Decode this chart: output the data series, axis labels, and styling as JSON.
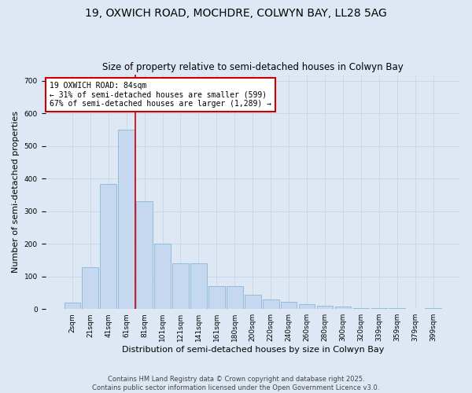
{
  "title_line1": "19, OXWICH ROAD, MOCHDRE, COLWYN BAY, LL28 5AG",
  "title_line2": "Size of property relative to semi-detached houses in Colwyn Bay",
  "xlabel": "Distribution of semi-detached houses by size in Colwyn Bay",
  "ylabel": "Number of semi-detached properties",
  "categories": [
    "2sqm",
    "21sqm",
    "41sqm",
    "61sqm",
    "81sqm",
    "101sqm",
    "121sqm",
    "141sqm",
    "161sqm",
    "180sqm",
    "200sqm",
    "220sqm",
    "240sqm",
    "260sqm",
    "280sqm",
    "300sqm",
    "320sqm",
    "339sqm",
    "359sqm",
    "379sqm",
    "399sqm"
  ],
  "values": [
    20,
    128,
    385,
    550,
    330,
    200,
    140,
    140,
    70,
    70,
    45,
    30,
    22,
    15,
    10,
    8,
    4,
    2,
    2,
    1,
    2
  ],
  "bar_color": "#c5d8f0",
  "bar_edge_color": "#7aafd4",
  "highlight_index": 3,
  "annotation_text_line1": "19 OXWICH ROAD: 84sqm",
  "annotation_text_line2": "← 31% of semi-detached houses are smaller (599)",
  "annotation_text_line3": "67% of semi-detached houses are larger (1,289) →",
  "annotation_box_color": "#ffffff",
  "annotation_border_color": "#cc0000",
  "vline_color": "#cc0000",
  "grid_color": "#c8d8e8",
  "background_color": "#dde8f4",
  "ylim": [
    0,
    720
  ],
  "yticks": [
    0,
    100,
    200,
    300,
    400,
    500,
    600,
    700
  ],
  "footer_line1": "Contains HM Land Registry data © Crown copyright and database right 2025.",
  "footer_line2": "Contains public sector information licensed under the Open Government Licence v3.0.",
  "title_fontsize": 10,
  "subtitle_fontsize": 8.5,
  "axis_label_fontsize": 8,
  "tick_fontsize": 6.5,
  "annotation_fontsize": 7,
  "footer_fontsize": 6
}
